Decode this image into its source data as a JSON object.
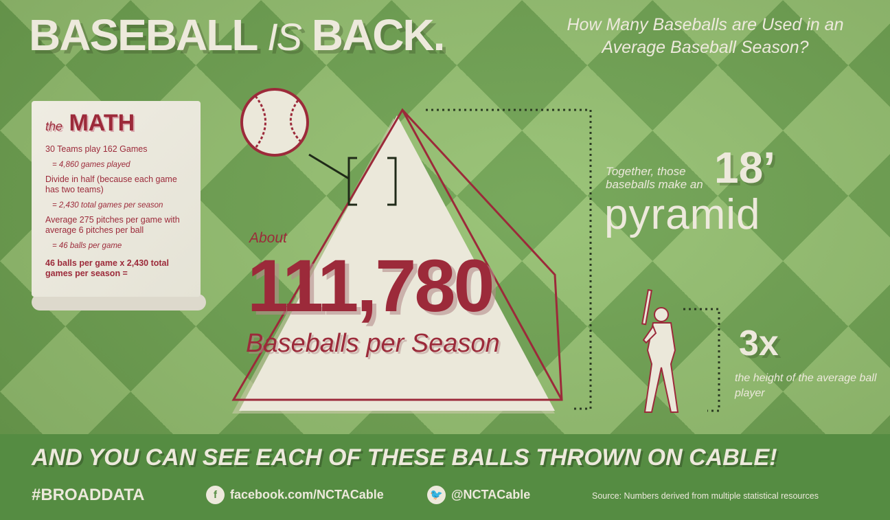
{
  "header": {
    "title_part1": "BASEBALL",
    "title_part2": "IS",
    "title_part3": "BACK.",
    "subtitle": "How Many Baseballs are Used in an Average Baseball Season?"
  },
  "math": {
    "heading_small": "the",
    "heading": "MATH",
    "lines": [
      "30 Teams play 162 Games",
      "= 4,860 games played",
      "Divide in half (because each game has two teams)",
      "= 2,430 total games per season",
      "Average 275 pitches per game with average 6 pitches per ball",
      "= 46 balls per game",
      "46 balls per game x 2,430 total games per season ="
    ]
  },
  "result": {
    "prefix": "About",
    "number": "111,780",
    "unit": "Baseballs per Season"
  },
  "pyramid": {
    "caption": "Together, those baseballs make an",
    "height": "18’",
    "word": "pyramid"
  },
  "player": {
    "multiplier": "3x",
    "caption": "the height of the average ball player"
  },
  "footer": {
    "tagline": "AND YOU CAN SEE EACH OF THESE BALLS THROWN ON CABLE!",
    "hashtag": "#BROADDATA",
    "facebook": "facebook.com/NCTACable",
    "twitter": "@NCTACable",
    "source": "Source: Numbers derived from multiple statistical resources"
  },
  "colors": {
    "accent_red": "#9c2a3a",
    "cream": "#ede9dc",
    "green_dark": "#6da14f",
    "green_light": "#93bf6e",
    "band": "#558c42"
  }
}
